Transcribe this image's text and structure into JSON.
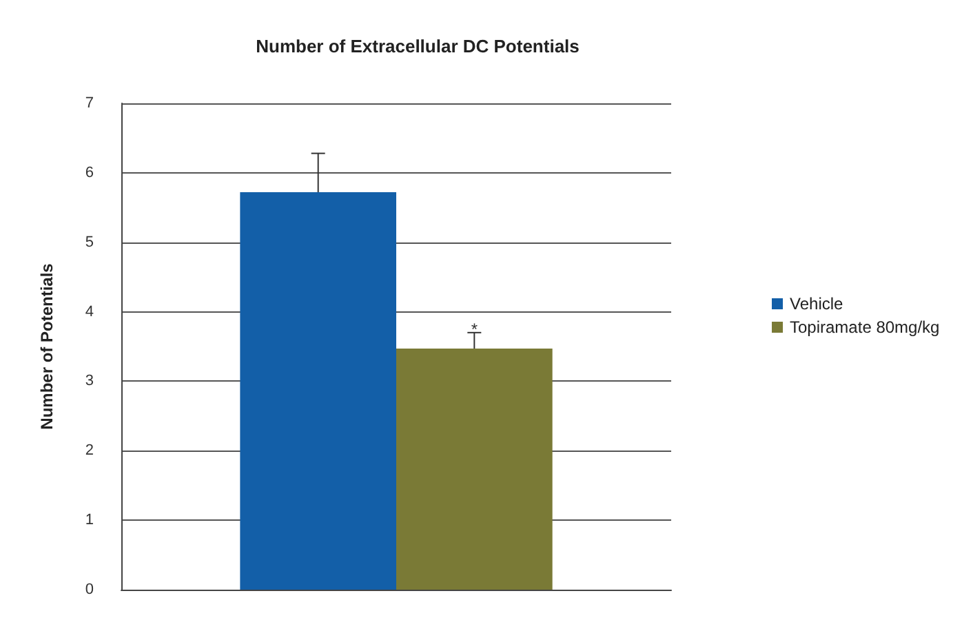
{
  "chart_data": {
    "type": "bar",
    "title": "Number of Extracellular DC Potentials",
    "ylabel": "Number of Potentials",
    "categories": [
      null
    ],
    "series": [
      {
        "name": "Vehicle",
        "color": "#135fa8",
        "values": [
          5.72
        ],
        "errors": [
          [
            5.72,
            6.28
          ]
        ]
      },
      {
        "name": "Topiramate 80mg/kg",
        "color": "#7a7a36",
        "values": [
          3.47
        ],
        "errors": [
          [
            3.47,
            3.7
          ]
        ]
      }
    ],
    "annotations": [
      {
        "text": "*",
        "y": 3.75
      }
    ],
    "ylim": [
      0,
      7
    ],
    "yticks": [
      0,
      1,
      2,
      3,
      4,
      5,
      6,
      7
    ],
    "grid": "y",
    "legend": "right"
  }
}
